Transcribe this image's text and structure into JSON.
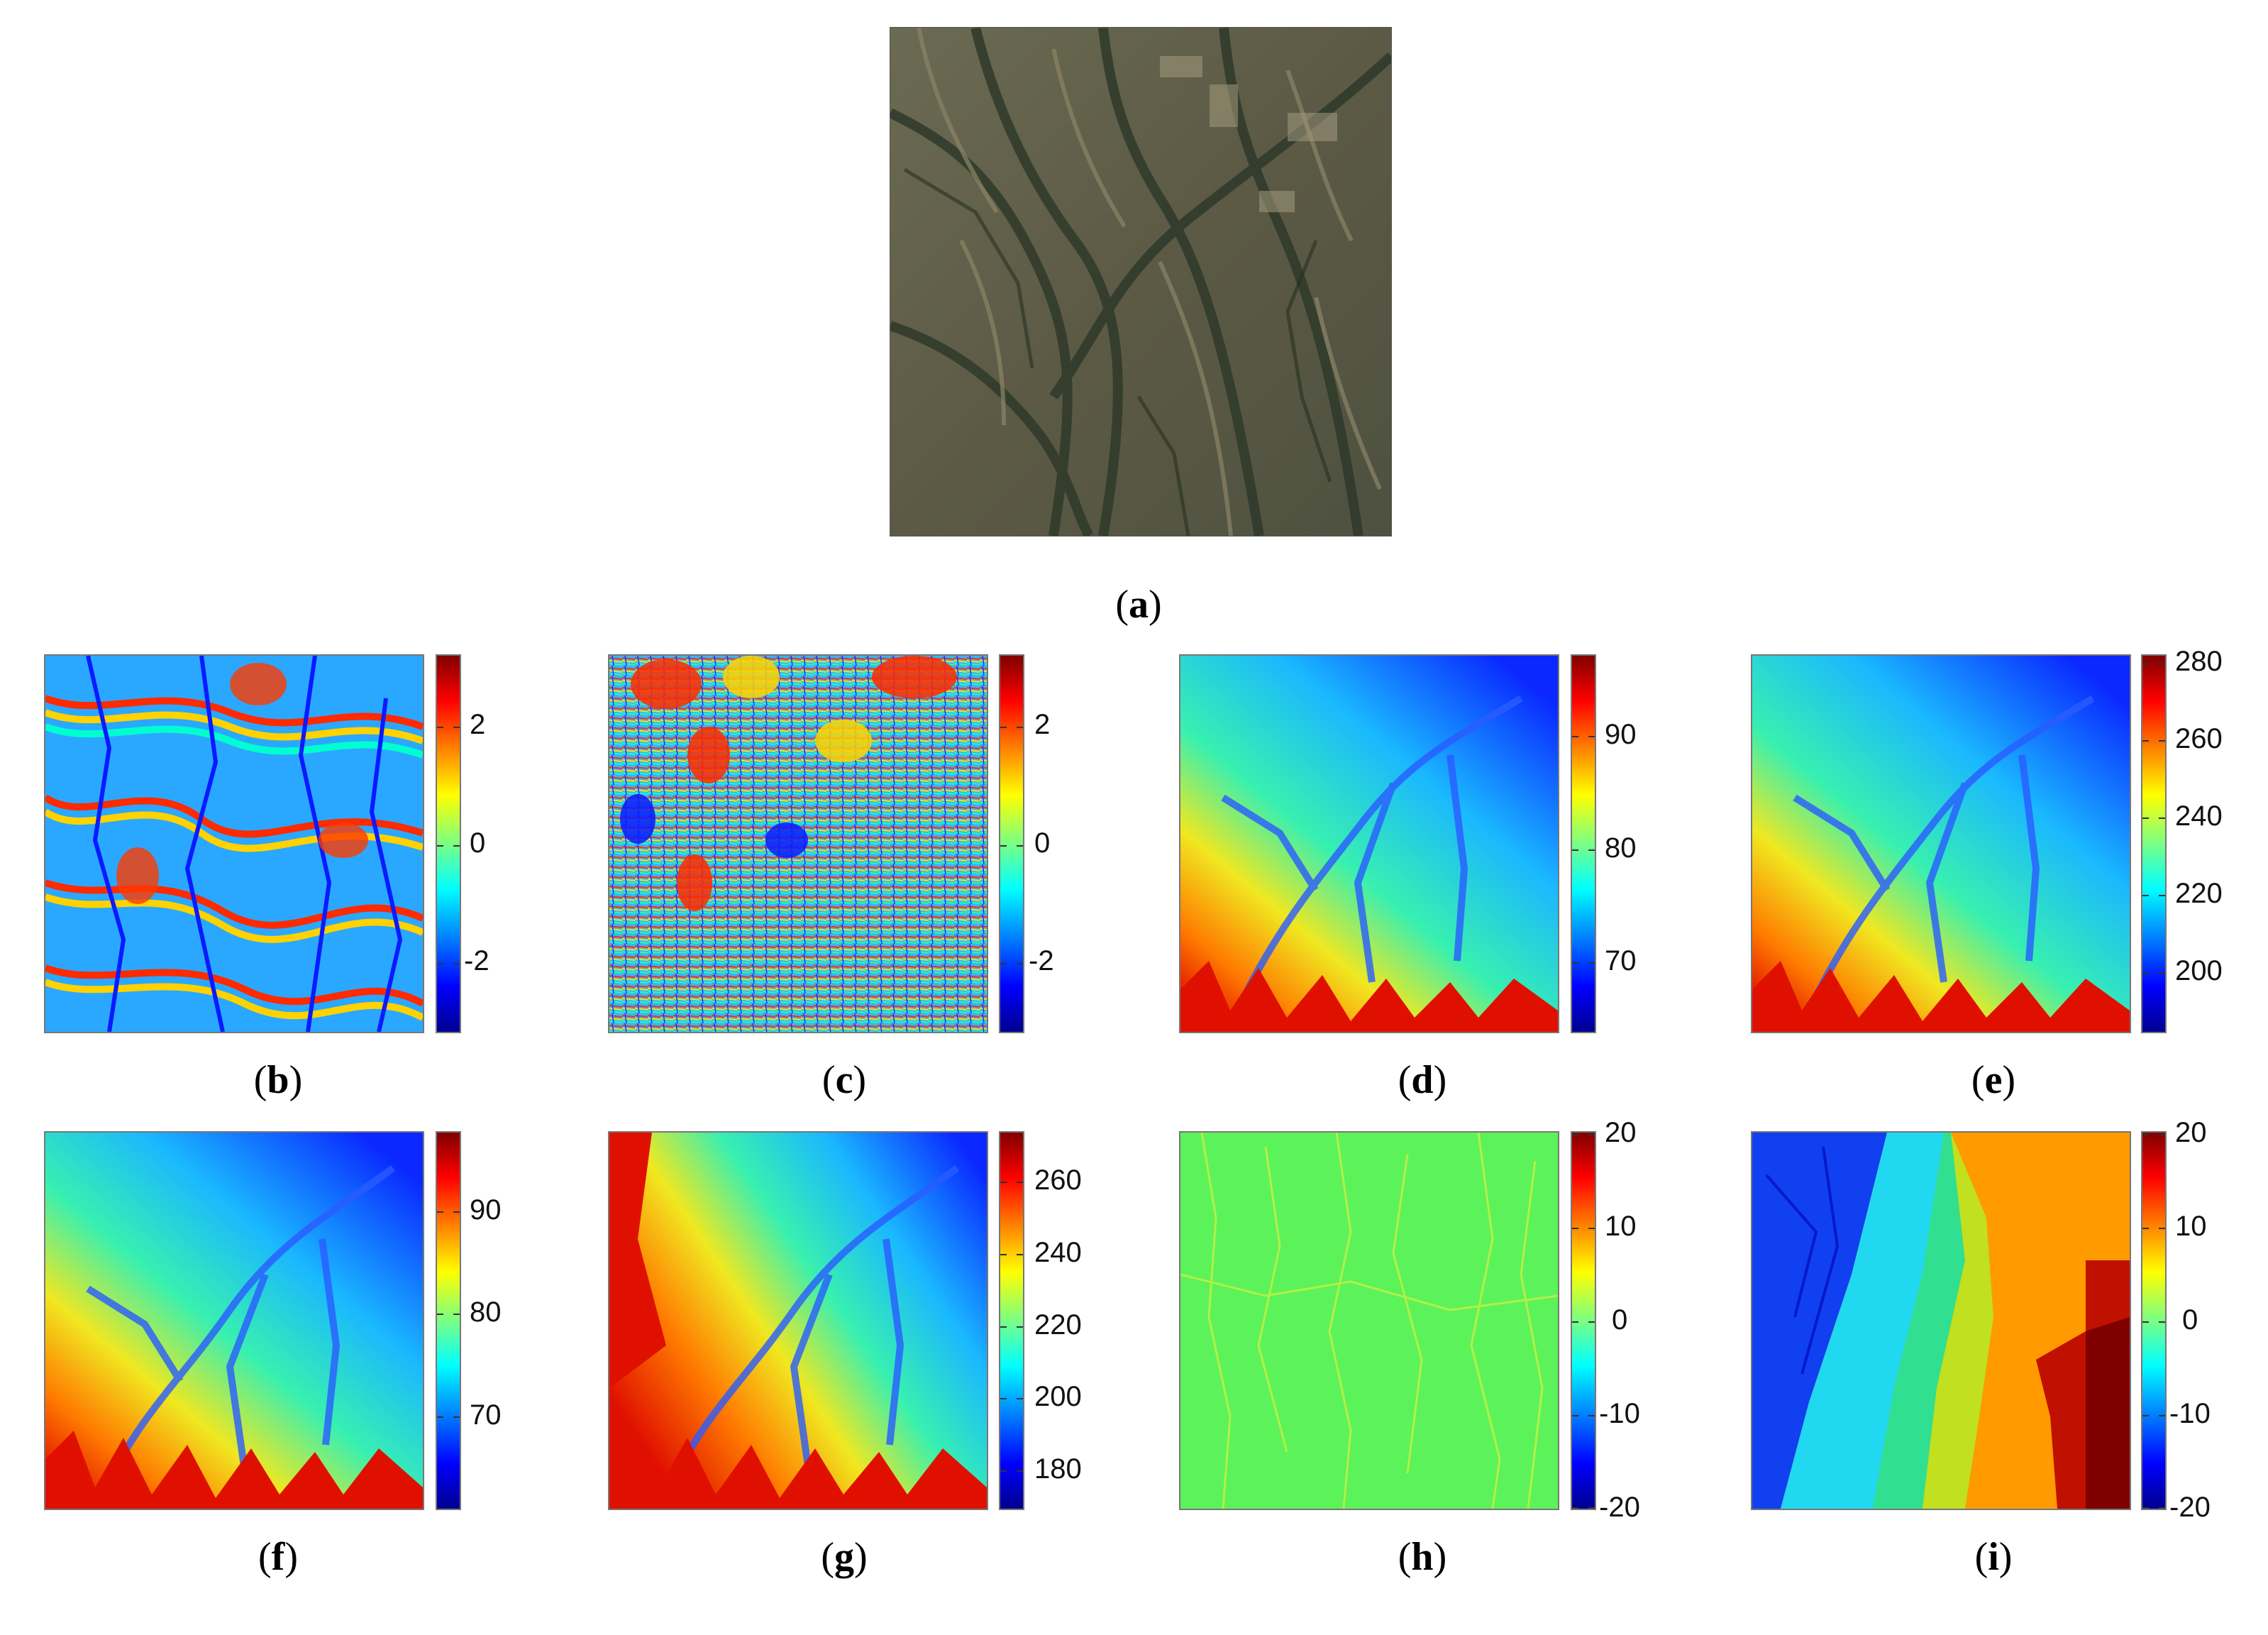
{
  "figure": {
    "captions": {
      "a": {
        "open": "(",
        "letter": "a",
        "close": ")"
      },
      "b": {
        "open": "(",
        "letter": "b",
        "close": ")"
      },
      "c": {
        "open": "(",
        "letter": "c",
        "close": ")"
      },
      "d": {
        "open": "(",
        "letter": "d",
        "close": ")"
      },
      "e": {
        "open": "(",
        "letter": "e",
        "close": ")"
      },
      "f": {
        "open": "(",
        "letter": "f",
        "close": ")"
      },
      "g": {
        "open": "(",
        "letter": "g",
        "close": ")"
      },
      "h": {
        "open": "(",
        "letter": "h",
        "close": ")"
      },
      "i": {
        "open": "(",
        "letter": "i",
        "close": ")"
      }
    },
    "colorbars": {
      "b": {
        "ticks": [
          "2",
          "0",
          "-2"
        ],
        "range": [
          -3.14,
          3.14
        ],
        "tick_values": [
          2,
          0,
          -2
        ]
      },
      "c": {
        "ticks": [
          "2",
          "0",
          "-2"
        ],
        "range": [
          -3.14,
          3.14
        ],
        "tick_values": [
          2,
          0,
          -2
        ]
      },
      "d": {
        "ticks": [
          "90",
          "80",
          "70"
        ],
        "range": [
          64,
          97
        ],
        "tick_values": [
          90,
          80,
          70
        ]
      },
      "e": {
        "ticks": [
          "280",
          "260",
          "240",
          "220",
          "200"
        ],
        "range": [
          186,
          283
        ],
        "tick_values": [
          280,
          260,
          240,
          220,
          200
        ]
      },
      "f": {
        "ticks": [
          "90",
          "80",
          "70"
        ],
        "range": [
          62,
          99
        ],
        "tick_values": [
          90,
          80,
          70
        ]
      },
      "g": {
        "ticks": [
          "260",
          "240",
          "220",
          "200",
          "180"
        ],
        "range": [
          168,
          274
        ],
        "tick_values": [
          260,
          240,
          220,
          200,
          180
        ]
      },
      "h": {
        "ticks": [
          "20",
          "10",
          "0",
          "-10",
          "-20"
        ],
        "range": [
          -20,
          20
        ],
        "tick_values": [
          20,
          10,
          0,
          -10,
          -20
        ]
      },
      "i": {
        "ticks": [
          "20",
          "10",
          "0",
          "-10",
          "-20"
        ],
        "range": [
          -20,
          20
        ],
        "tick_values": [
          20,
          10,
          0,
          -10,
          -20
        ]
      }
    },
    "colormap": "jet",
    "colors": {
      "jet_dark_blue": "#00008f",
      "jet_blue": "#0000ff",
      "jet_cyan": "#00ffff",
      "jet_yellow": "#ffff00",
      "jet_red": "#ff0000",
      "jet_dark_red": "#800000"
    }
  }
}
